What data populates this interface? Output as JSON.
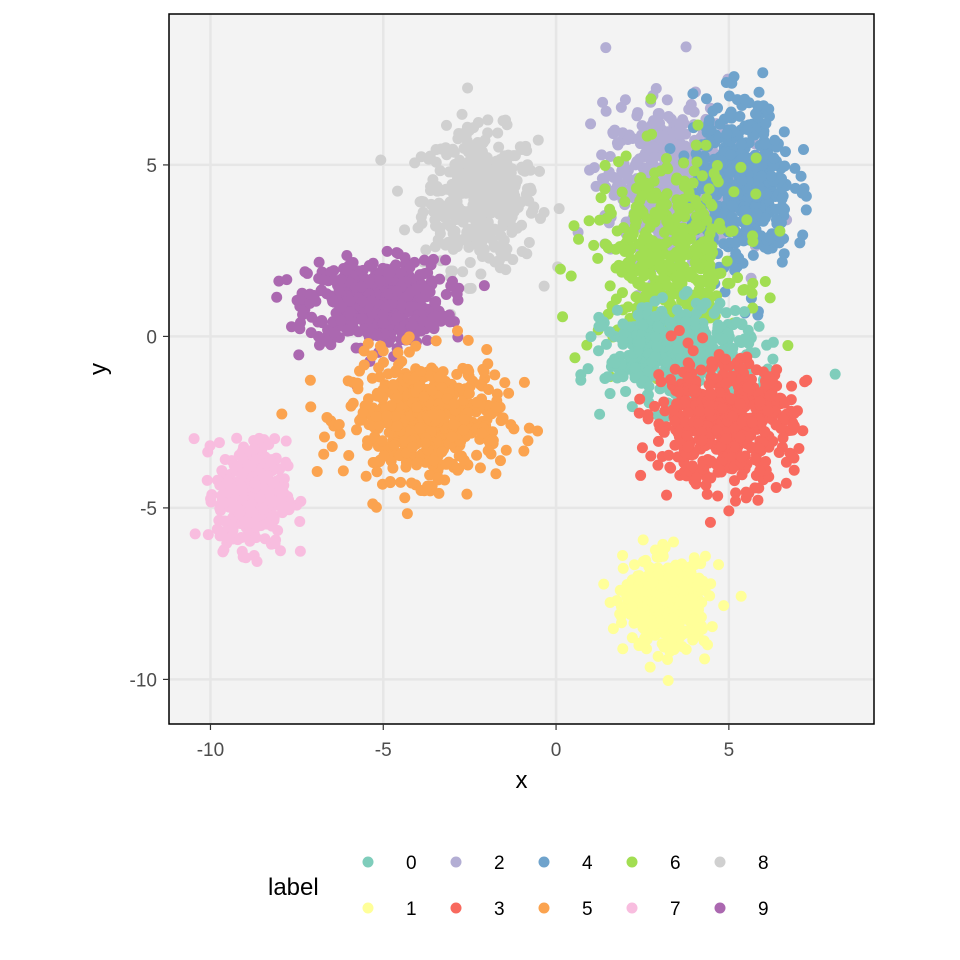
{
  "chart_data": {
    "type": "scatter",
    "title": "",
    "xlabel": "x",
    "ylabel": "y",
    "xlim": [
      -11.2,
      9.2
    ],
    "ylim": [
      -11.3,
      9.4
    ],
    "xticks": [
      -10,
      -5,
      0,
      5
    ],
    "xtick_labels": [
      "-10",
      "-5",
      "0",
      "5"
    ],
    "yticks": [
      5,
      0,
      -5,
      -10
    ],
    "ytick_labels": [
      "5",
      "0",
      "-5",
      "-10"
    ],
    "grid": true,
    "panel_background": "#f3f3f3",
    "legend": {
      "title": "label",
      "position": "bottom",
      "entries": [
        {
          "label": "0",
          "color": "#7fcdbb"
        },
        {
          "label": "1",
          "color": "#ffff99"
        },
        {
          "label": "2",
          "color": "#b3aed4"
        },
        {
          "label": "3",
          "color": "#f8695e"
        },
        {
          "label": "4",
          "color": "#6fa3cc"
        },
        {
          "label": "5",
          "color": "#fba34f"
        },
        {
          "label": "6",
          "color": "#a2de52"
        },
        {
          "label": "7",
          "color": "#f8bddf"
        },
        {
          "label": "8",
          "color": "#d0d0d0"
        },
        {
          "label": "9",
          "color": "#ab68b0"
        }
      ]
    },
    "clusters": [
      {
        "label": "8",
        "center": [
          -2.2,
          4.0
        ],
        "spread": [
          1.5,
          1.8
        ],
        "n": 420
      },
      {
        "label": "9",
        "center": [
          -5.2,
          1.0
        ],
        "spread": [
          1.8,
          1.1
        ],
        "n": 520
      },
      {
        "label": "5",
        "center": [
          -3.8,
          -2.4
        ],
        "spread": [
          2.0,
          1.6
        ],
        "n": 520
      },
      {
        "label": "7",
        "center": [
          -8.8,
          -4.6
        ],
        "spread": [
          0.9,
          1.4
        ],
        "n": 380
      },
      {
        "label": "2",
        "center": [
          3.4,
          4.5
        ],
        "spread": [
          1.8,
          2.0
        ],
        "n": 560
      },
      {
        "label": "4",
        "center": [
          5.4,
          4.4
        ],
        "spread": [
          1.3,
          2.2
        ],
        "n": 460
      },
      {
        "label": "6",
        "center": [
          3.2,
          2.2
        ],
        "spread": [
          2.0,
          2.6
        ],
        "n": 420
      },
      {
        "label": "0",
        "center": [
          3.6,
          -0.5
        ],
        "spread": [
          1.9,
          1.2
        ],
        "n": 480
      },
      {
        "label": "3",
        "center": [
          4.8,
          -2.5
        ],
        "spread": [
          1.8,
          1.6
        ],
        "n": 560
      },
      {
        "label": "1",
        "center": [
          3.2,
          -7.8
        ],
        "spread": [
          1.1,
          1.2
        ],
        "n": 420
      }
    ]
  }
}
